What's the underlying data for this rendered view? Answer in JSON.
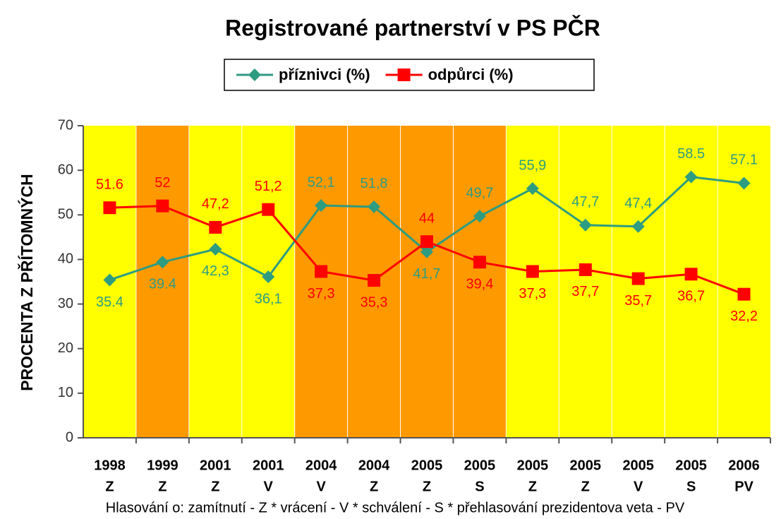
{
  "chart_data": {
    "type": "line",
    "title": "Registrované partnerství v PS PČR",
    "y_label": "PROCENTA Z PŘÍTOMNÝCH",
    "footnote": "Hlasování o: zamítnutí - Z * vrácení - V * schválení - S * přehlasování prezidentova veta - PV",
    "categories": [
      [
        "1998",
        "Z"
      ],
      [
        "1999",
        "Z"
      ],
      [
        "2001",
        "Z"
      ],
      [
        "2001",
        "V"
      ],
      [
        "2004",
        "V"
      ],
      [
        "2004",
        "Z"
      ],
      [
        "2005",
        "Z"
      ],
      [
        "2005",
        "S"
      ],
      [
        "2005",
        "Z"
      ],
      [
        "2005",
        "Z"
      ],
      [
        "2005",
        "V"
      ],
      [
        "2005",
        "S"
      ],
      [
        "2006",
        "PV"
      ]
    ],
    "band_colors": [
      "#ffff00",
      "#ff9900",
      "#ffff00",
      "#ffff00",
      "#ff9900",
      "#ff9900",
      "#ff9900",
      "#ff9900",
      "#ffff00",
      "#ffff00",
      "#ffff00",
      "#ffff00",
      "#ffff00"
    ],
    "series": [
      {
        "name": "příznivci (%)",
        "color": "#2e9c80",
        "marker": "diamond",
        "values": [
          35.4,
          39.4,
          42.3,
          36.1,
          52.1,
          51.8,
          41.7,
          49.7,
          55.9,
          47.7,
          47.4,
          58.5,
          57.1
        ],
        "value_labels": [
          "35.4",
          "39.4",
          "42,3",
          "36,1",
          "52,1",
          "51,8",
          "41,7",
          "49,7",
          "55,9",
          "47,7",
          "47,4",
          "58.5",
          "57.1"
        ]
      },
      {
        "name": "odpůrci (%)",
        "color": "#ff0000",
        "marker": "square",
        "values": [
          51.6,
          52,
          47.2,
          51.2,
          37.3,
          35.3,
          44,
          39.4,
          37.3,
          37.7,
          35.7,
          36.7,
          32.2
        ],
        "value_labels": [
          "51.6",
          "52",
          "47,2",
          "51,2",
          "37,3",
          "35,3",
          "44",
          "39,4",
          "37,3",
          "37,7",
          "35,7",
          "36,7",
          "32,2"
        ]
      }
    ],
    "ylim": [
      0,
      70
    ],
    "yticks": [
      0,
      10,
      20,
      30,
      40,
      50,
      60,
      70
    ],
    "legend": "top"
  }
}
